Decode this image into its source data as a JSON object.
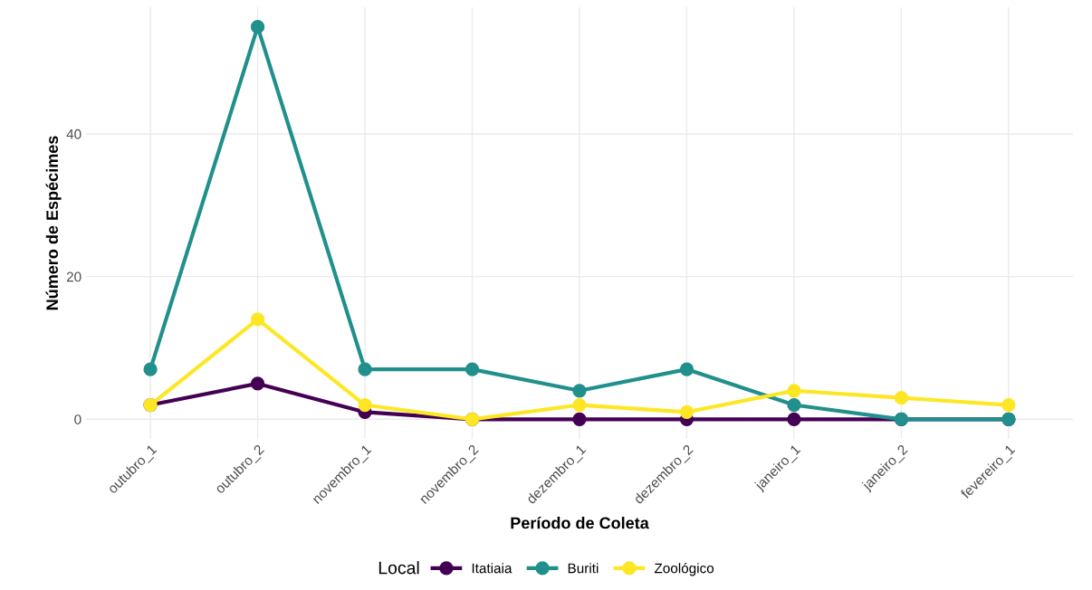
{
  "chart_data": {
    "type": "line",
    "xlabel": "Período de Coleta",
    "ylabel": "Número de Espécimes",
    "legend_title": "Local",
    "categories": [
      "outubro_1",
      "outubro_2",
      "novembro_1",
      "novembro_2",
      "dezembro_1",
      "dezembro_2",
      "janeiro_1",
      "janeiro_2",
      "fevereiro_1"
    ],
    "series": [
      {
        "name": "Itatiaia",
        "color": "#440154",
        "values": [
          2,
          5,
          1,
          0,
          0,
          0,
          0,
          0,
          0
        ]
      },
      {
        "name": "Buriti",
        "color": "#21908c",
        "values": [
          7,
          55,
          7,
          7,
          4,
          7,
          2,
          0,
          0
        ]
      },
      {
        "name": "Zoológico",
        "color": "#fde725",
        "values": [
          2,
          14,
          2,
          0,
          2,
          1,
          4,
          3,
          2
        ]
      }
    ],
    "ylim": [
      -2.75,
      57.75
    ],
    "yticks": [
      0,
      20,
      40
    ],
    "grid": true,
    "legend": "bottom",
    "marker": "circle",
    "line_style": "solid"
  }
}
